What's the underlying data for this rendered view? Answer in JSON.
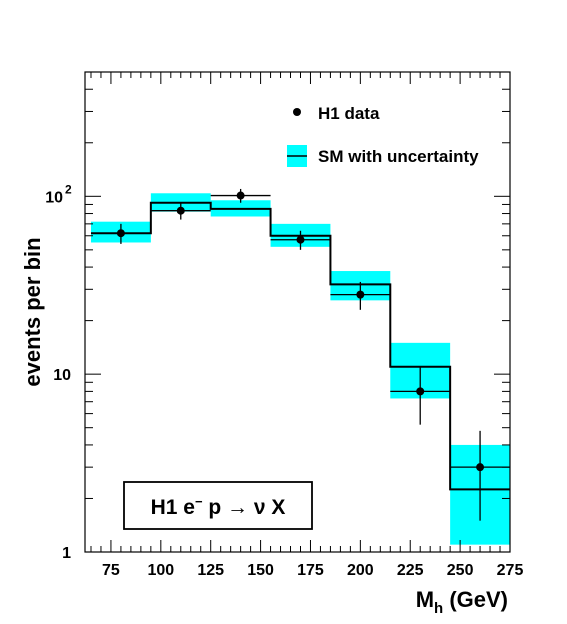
{
  "chart_data": {
    "type": "histogram",
    "ylabel": "events per bin",
    "xlabel_main": "M",
    "xlabel_sub": "h",
    "xlabel_unit": "(GeV)",
    "x_log": false,
    "y_log": true,
    "xlim": [
      62,
      275
    ],
    "ylim": [
      1,
      500
    ],
    "x_ticks": [
      "75",
      "100",
      "125",
      "150",
      "175",
      "200",
      "225",
      "250",
      "275"
    ],
    "y_tick_labels": [
      {
        "value": 1,
        "base": "1",
        "exp": ""
      },
      {
        "value": 10,
        "base": "10",
        "exp": ""
      },
      {
        "value": 100,
        "base": "10",
        "exp": "2"
      }
    ],
    "bin_edges": [
      65,
      95,
      125,
      155,
      185,
      215,
      245,
      275
    ],
    "series": [
      {
        "name": "SM with uncertainty",
        "kind": "band+line",
        "values": [
          62,
          92,
          85,
          60,
          32,
          11,
          2.25
        ],
        "low": [
          55,
          82,
          77,
          52,
          26,
          7.3,
          1.1
        ],
        "high": [
          72,
          104,
          95,
          70,
          38,
          15,
          4.0
        ],
        "color": "#00ffff"
      },
      {
        "name": "H1 data",
        "kind": "points",
        "x": [
          80,
          110,
          140,
          170,
          200,
          230,
          260
        ],
        "values": [
          62,
          83,
          101,
          57,
          28,
          8,
          3
        ],
        "yerr_low": [
          54,
          74,
          92,
          50,
          23,
          5.2,
          1.5
        ],
        "yerr_high": [
          70,
          92,
          110,
          64,
          33,
          11,
          4.8
        ],
        "xerr_half": 15,
        "color": "#000000"
      }
    ],
    "legend": [
      {
        "marker": "point",
        "label": "H1 data"
      },
      {
        "marker": "band",
        "label": "SM with uncertainty"
      }
    ],
    "legend_position": "top-right",
    "annotation": {
      "prefix": "H1 e",
      "superscript": "−",
      "middle": " p ",
      "arrow": "→",
      "suffix": " ν X"
    },
    "grid": false
  }
}
